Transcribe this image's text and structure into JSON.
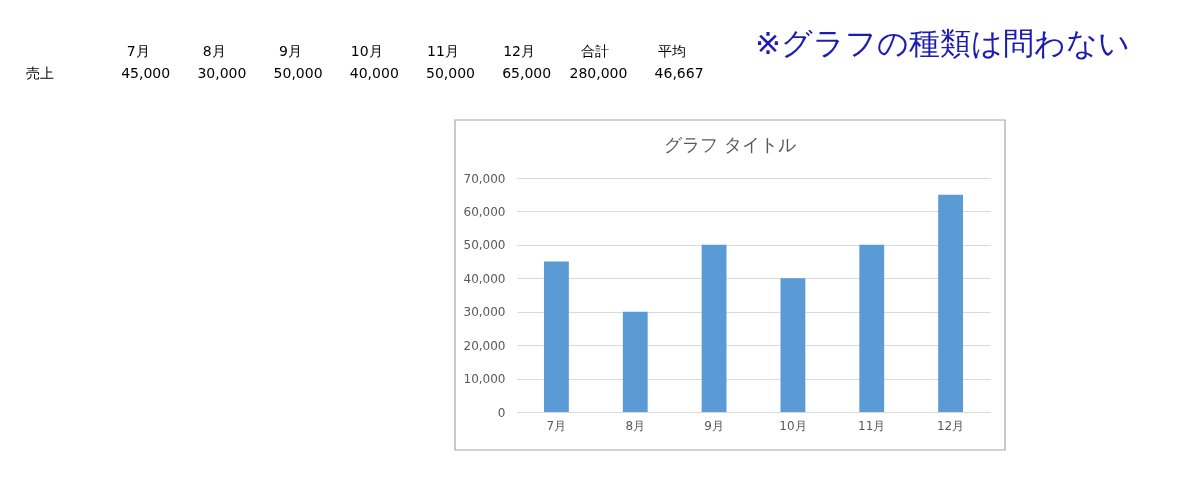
{
  "chart_data": {
    "type": "bar",
    "title": "グラフ タイトル",
    "categories": [
      "7月",
      "8月",
      "9月",
      "10月",
      "11月",
      "12月"
    ],
    "values": [
      45000,
      30000,
      50000,
      40000,
      50000,
      65000
    ],
    "color": "#5b9bd5",
    "ylim": [
      0,
      70000
    ],
    "yticks": [
      0,
      {
        "value": 10000,
        "label": "10,000"
      },
      {
        "value": 20000,
        "label": "20,000"
      },
      {
        "value": 30000,
        "label": "30,000"
      },
      {
        "value": 40000,
        "label": "40,000"
      },
      {
        "value": 50000,
        "label": "50,000"
      },
      {
        "value": 60000,
        "label": "60,000"
      },
      {
        "value": 70000,
        "label": "70,000"
      }
    ],
    "grid": "y",
    "annotations": [
      "売上",
      "45,000",
      "30,000",
      "50,000",
      "40,000",
      "50,000",
      "65,000",
      "合計",
      "280,000",
      "平均",
      "46,667",
      "※グラフの種類は問わない"
    ]
  }
}
